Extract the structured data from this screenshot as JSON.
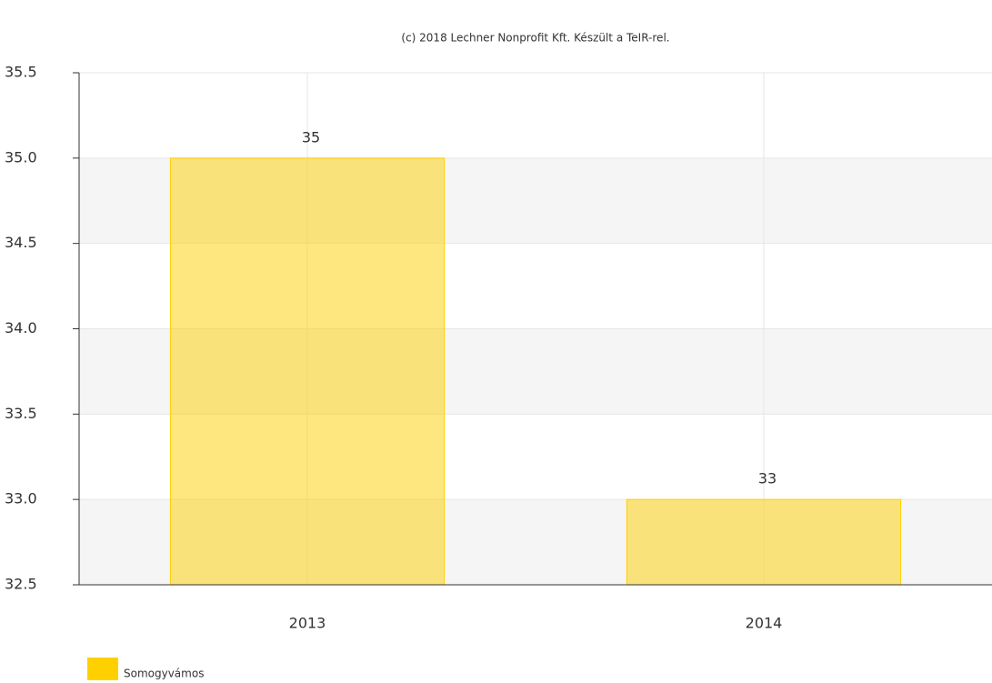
{
  "chart_data": {
    "type": "bar",
    "subtitle": "(c) 2018 Lechner Nonprofit Kft. Készült a TeIR-rel.",
    "categories": [
      "2013",
      "2014"
    ],
    "series": [
      {
        "name": "Somogyvámos",
        "color": "#ffd000",
        "values": [
          35,
          33
        ]
      }
    ],
    "ylim": [
      32.5,
      35.5
    ],
    "yticks": [
      32.5,
      {
        "value": 33,
        "label": "33.0"
      },
      33.5,
      {
        "value": 34,
        "label": "34.0"
      },
      34.5,
      {
        "value": 35,
        "label": "35.0"
      },
      35.5
    ],
    "grid": true,
    "legend": "bottom-left"
  }
}
